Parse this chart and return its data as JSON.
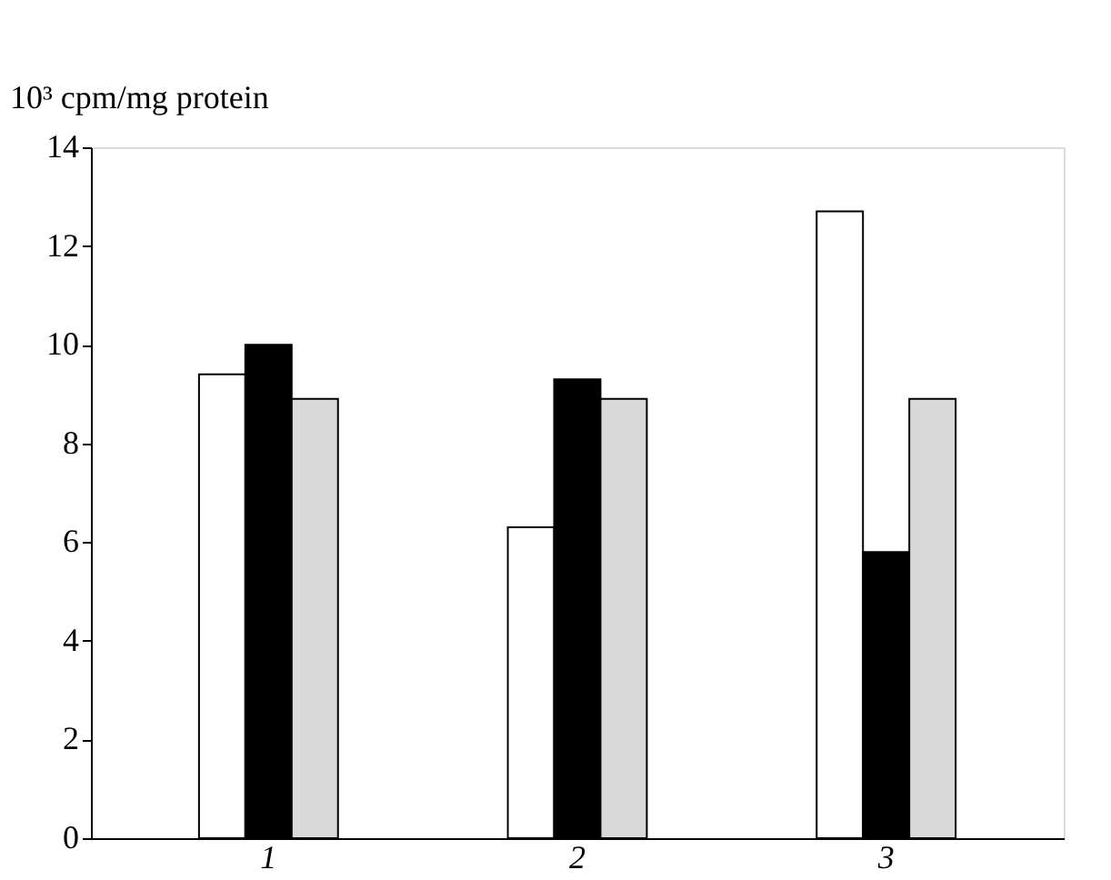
{
  "chart_data": {
    "type": "bar",
    "ylabel": "10³ cpm/mg protein",
    "categories": [
      "1",
      "2",
      "3"
    ],
    "series": [
      {
        "color": "#ffffff",
        "values": [
          9.4,
          6.3,
          12.7
        ]
      },
      {
        "color": "#000000",
        "values": [
          10.0,
          9.3,
          5.8
        ]
      },
      {
        "color": "#d9d9d9",
        "values": [
          8.9,
          8.9,
          8.9
        ]
      }
    ],
    "ylim": [
      0,
      14
    ],
    "yticks": [
      0,
      2,
      4,
      6,
      8,
      10,
      12,
      14
    ],
    "grid": false
  }
}
